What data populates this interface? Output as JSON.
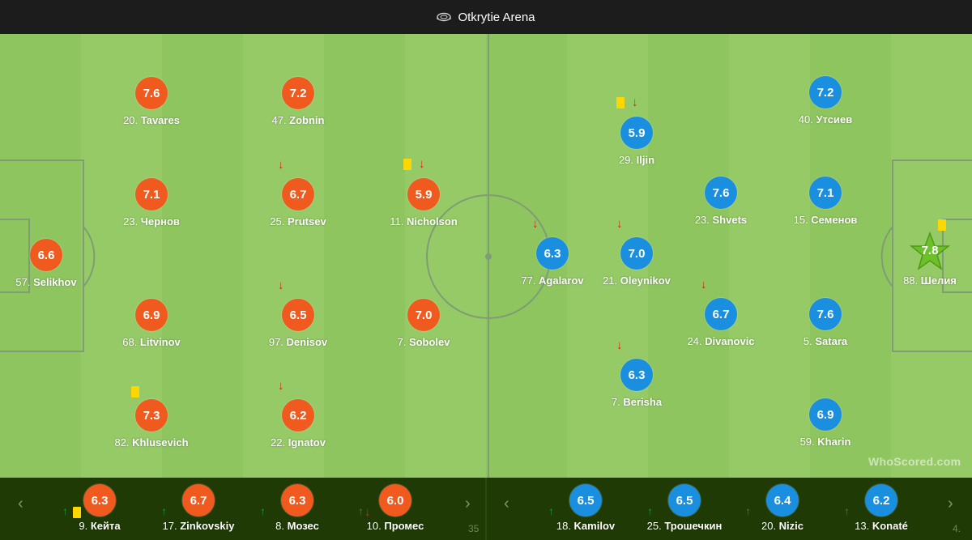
{
  "header": {
    "venue": "Otkrytie Arena"
  },
  "watermark": "WhoScored.com",
  "colors": {
    "home": "#f05a1e",
    "away": "#1a8fe0",
    "motm": "#6cc12a",
    "yellow_card": "#ffd700",
    "sub_out": "#e02020",
    "sub_in": "#1a9a2a"
  },
  "home_players": [
    {
      "num": "20.",
      "name": "Tavares",
      "rating": "7.6"
    },
    {
      "num": "47.",
      "name": "Zobnin",
      "rating": "7.2"
    },
    {
      "num": "23.",
      "name": "Чернов",
      "rating": "7.1"
    },
    {
      "num": "25.",
      "name": "Prutsev",
      "rating": "6.7",
      "sub_out": true
    },
    {
      "num": "11.",
      "name": "Nicholson",
      "rating": "5.9",
      "sub_out": true,
      "yellow": true
    },
    {
      "num": "57.",
      "name": "Selikhov",
      "rating": "6.6"
    },
    {
      "num": "68.",
      "name": "Litvinov",
      "rating": "6.9"
    },
    {
      "num": "97.",
      "name": "Denisov",
      "rating": "6.5",
      "sub_out": true
    },
    {
      "num": "7.",
      "name": "Sobolev",
      "rating": "7.0"
    },
    {
      "num": "82.",
      "name": "Khlusevich",
      "rating": "7.3",
      "yellow": true
    },
    {
      "num": "22.",
      "name": "Ignatov",
      "rating": "6.2",
      "sub_out": true
    }
  ],
  "away_players": [
    {
      "num": "40.",
      "name": "Утсиев",
      "rating": "7.2"
    },
    {
      "num": "29.",
      "name": "Iljin",
      "rating": "5.9",
      "sub_out": true,
      "yellow": true
    },
    {
      "num": "23.",
      "name": "Shvets",
      "rating": "7.6"
    },
    {
      "num": "15.",
      "name": "Семенов",
      "rating": "7.1"
    },
    {
      "num": "77.",
      "name": "Agalarov",
      "rating": "6.3",
      "sub_out": true
    },
    {
      "num": "21.",
      "name": "Oleynikov",
      "rating": "7.0",
      "sub_out": true
    },
    {
      "num": "88.",
      "name": "Шелия",
      "rating": "7.8",
      "motm": true,
      "yellow": true
    },
    {
      "num": "24.",
      "name": "Divanovic",
      "rating": "6.7",
      "sub_out": true
    },
    {
      "num": "5.",
      "name": "Satara",
      "rating": "7.6"
    },
    {
      "num": "7.",
      "name": "Berisha",
      "rating": "6.3",
      "sub_out": true
    },
    {
      "num": "59.",
      "name": "Kharin",
      "rating": "6.9"
    }
  ],
  "home_subs": [
    {
      "num": "9.",
      "name": "Кейта",
      "rating": "6.3",
      "yellow": true
    },
    {
      "num": "17.",
      "name": "Zinkovskiy",
      "rating": "6.7"
    },
    {
      "num": "8.",
      "name": "Мозес",
      "rating": "6.3"
    },
    {
      "num": "10.",
      "name": "Промес",
      "rating": "6.0",
      "sub_out": true
    }
  ],
  "away_subs": [
    {
      "num": "18.",
      "name": "Kamilov",
      "rating": "6.5"
    },
    {
      "num": "25.",
      "name": "Трошечкин",
      "rating": "6.5"
    },
    {
      "num": "20.",
      "name": "Nizic",
      "rating": "6.4"
    },
    {
      "num": "13.",
      "name": "Konaté",
      "rating": "6.2"
    }
  ],
  "bench_truncated": {
    "home": "35",
    "away": "4."
  },
  "icons": {
    "prev": "chevron-left-icon",
    "next": "chevron-right-icon",
    "stadium": "stadium-icon"
  }
}
